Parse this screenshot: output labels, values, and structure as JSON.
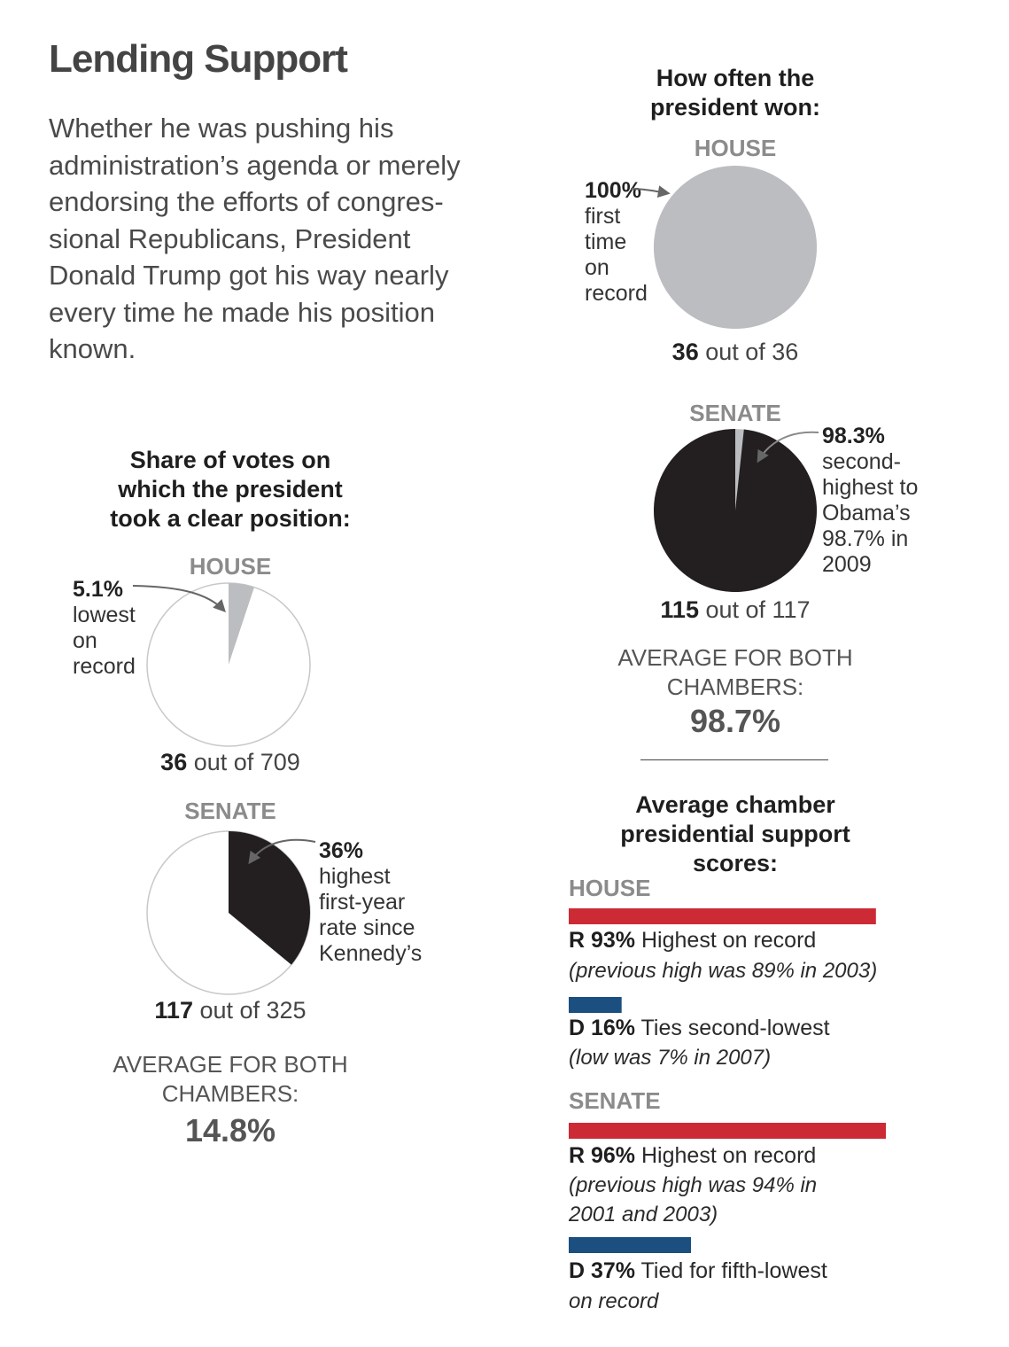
{
  "title": "Lending Support",
  "intro": "Whether he was pushing his\nadministration’s agenda or merely\nendorsing the efforts of congres-\nsional Republicans, President\nDonald Trump got his way nearly\nevery time he made his position\nknown.",
  "colors": {
    "gray_slice": "#bcbdc0",
    "black_slice": "#231f20",
    "pie_outline": "#c8c8c8",
    "republican": "#cc2b36",
    "democrat": "#1b4f7f",
    "arrow": "#666666"
  },
  "chart_data": [
    {
      "type": "pie",
      "title": "Share of votes on\nwhich the president\ntook a clear position:",
      "charts": [
        {
          "chamber": "HOUSE",
          "percent": 5.1,
          "annotation_pct": "5.1%",
          "annotation": "lowest\non\nrecord",
          "count_bold": "36",
          "count_rest": " out of 709",
          "fill": "gray"
        },
        {
          "chamber": "SENATE",
          "percent": 36,
          "annotation_pct": "36%",
          "annotation": "highest\nfirst-year\nrate since\nKennedy’s",
          "count_bold": "117",
          "count_rest": " out of 325",
          "fill": "black"
        }
      ],
      "average_label": "AVERAGE FOR BOTH\nCHAMBERS:",
      "average_value": "14.8%"
    },
    {
      "type": "pie",
      "title": "How often the\npresident won:",
      "charts": [
        {
          "chamber": "HOUSE",
          "percent": 100,
          "annotation_pct": "100%",
          "annotation": "first\ntime\non\nrecord",
          "count_bold": "36",
          "count_rest": " out of 36",
          "fill": "gray"
        },
        {
          "chamber": "SENATE",
          "percent": 98.3,
          "annotation_pct": "98.3%",
          "annotation": "second-\nhighest to\nObama’s\n98.7% in\n2009",
          "count_bold": "115",
          "count_rest": " out of 117",
          "fill": "black"
        }
      ],
      "average_label": "AVERAGE FOR BOTH\nCHAMBERS:",
      "average_value": "98.7%"
    },
    {
      "type": "bar",
      "title": "Average chamber\npresidential support\nscores:",
      "groups": [
        {
          "chamber": "HOUSE",
          "bars": [
            {
              "party": "R",
              "value": 93,
              "label": "R 93%",
              "text": " Highest on record",
              "note": "(previous high was 89% in 2003)",
              "color": "republican"
            },
            {
              "party": "D",
              "value": 16,
              "label": "D 16%",
              "text": " Ties second-lowest",
              "note": "(low was 7% in 2007)",
              "color": "democrat"
            }
          ]
        },
        {
          "chamber": "SENATE",
          "bars": [
            {
              "party": "R",
              "value": 96,
              "label": "R 96%",
              "text": " Highest on record",
              "note": "(previous high was 94% in\n2001 and 2003)",
              "color": "republican"
            },
            {
              "party": "D",
              "value": 37,
              "label": "D 37%",
              "text": " Tied for fifth-lowest",
              "note": "on record",
              "color": "democrat"
            }
          ]
        }
      ]
    }
  ]
}
